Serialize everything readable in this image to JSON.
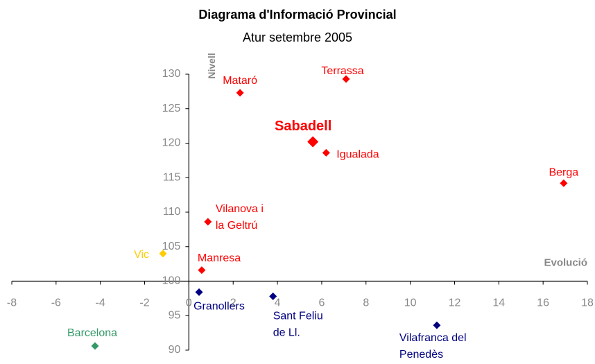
{
  "chart_data": {
    "type": "scatter",
    "title": "Diagrama d'Informació Provincial",
    "subtitle": "Atur setembre 2005",
    "x_label": "Evolució",
    "y_label": "Nivell",
    "xlim": [
      -8,
      18
    ],
    "xticks": [
      -8,
      -6,
      -4,
      -2,
      0,
      2,
      4,
      6,
      8,
      10,
      12,
      14,
      16,
      18
    ],
    "ylim": [
      90,
      130
    ],
    "yticks": [
      90,
      95,
      100,
      105,
      110,
      115,
      120,
      125,
      130
    ],
    "axis_cross": [
      0,
      100
    ],
    "points": [
      {
        "label": "Mataró",
        "x": 2.31,
        "y": 127.3,
        "color": "#ff0000"
      },
      {
        "label": "Terrassa",
        "x": 7.1,
        "y": 129.3,
        "color": "#ff0000"
      },
      {
        "label": "Sabadell",
        "x": 5.6,
        "y": 120.2,
        "color": "#ff0000",
        "emphasis": true
      },
      {
        "label": "Igualada",
        "x": 6.2,
        "y": 118.6,
        "color": "#ff0000"
      },
      {
        "label": "Berga",
        "x": 16.93,
        "y": 114.2,
        "color": "#ff0000"
      },
      {
        "label": "Vilanova i\nla Geltrú",
        "x": 0.86,
        "y": 108.6,
        "color": "#ff0000"
      },
      {
        "label": "Vic",
        "x": -1.17,
        "y": 104.0,
        "color": "#ffcc00"
      },
      {
        "label": "Manresa",
        "x": 0.58,
        "y": 101.6,
        "color": "#ff0000"
      },
      {
        "label": "Granollers",
        "x": 0.46,
        "y": 98.4,
        "color": "#000080"
      },
      {
        "label": "Sant Feliu\nde Ll.",
        "x": 3.8,
        "y": 97.8,
        "color": "#000080"
      },
      {
        "label": "Vilafranca del\nPenedès",
        "x": 11.2,
        "y": 93.6,
        "color": "#000080"
      },
      {
        "label": "Barcelona",
        "x": -4.24,
        "y": 90.6,
        "color": "#339966"
      }
    ]
  }
}
